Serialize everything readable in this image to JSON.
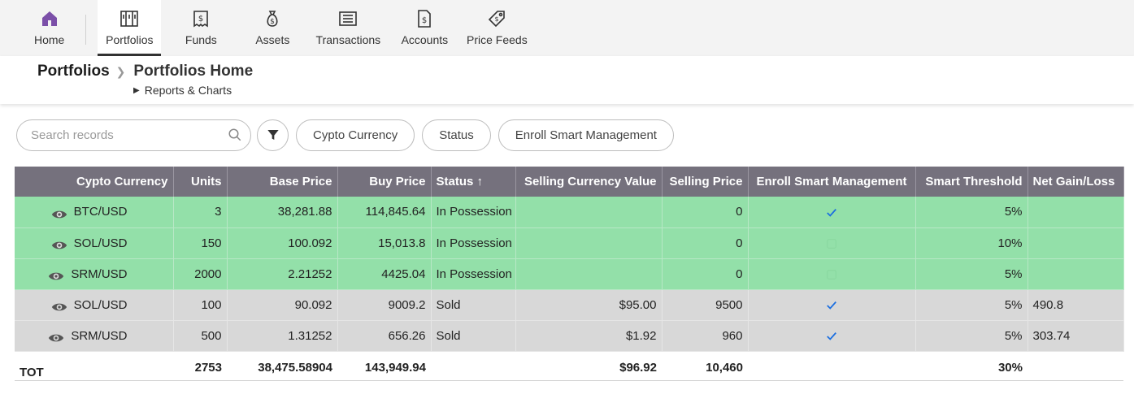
{
  "nav": {
    "items": [
      {
        "label": "Home",
        "icon": "home-icon"
      },
      {
        "label": "Portfolios",
        "icon": "portfolio-icon"
      },
      {
        "label": "Funds",
        "icon": "funds-icon"
      },
      {
        "label": "Assets",
        "icon": "money-bag-icon"
      },
      {
        "label": "Transactions",
        "icon": "transactions-icon"
      },
      {
        "label": "Accounts",
        "icon": "accounts-icon"
      },
      {
        "label": "Price Feeds",
        "icon": "price-tag-icon"
      }
    ],
    "active": "Portfolios",
    "home_color": "#7b4fa8"
  },
  "header": {
    "breadcrumb_root": "Portfolios",
    "breadcrumb_current": "Portfolios Home",
    "sublink": "Reports & Charts"
  },
  "toolbar": {
    "search_placeholder": "Search records",
    "pills": [
      "Cypto Currency",
      "Status",
      "Enroll Smart Management"
    ]
  },
  "table": {
    "headers": {
      "currency": "Cypto Currency",
      "units": "Units",
      "base_price": "Base Price",
      "buy_price": "Buy Price",
      "status": "Status",
      "selling_currency_value": "Selling Currency Value",
      "selling_price": "Selling Price",
      "enroll": "Enroll Smart Management",
      "threshold": "Smart Threshold",
      "net_gain": "Net Gain/Loss"
    },
    "rows": [
      {
        "currency": "BTC/USD",
        "units": "3",
        "base_price": "38,281.88",
        "buy_price": "114,845.64",
        "status": "In Possession",
        "selling_currency_value": "",
        "selling_price": "0",
        "enrolled": "yes",
        "threshold": "5%",
        "net_gain": "",
        "kind": "green"
      },
      {
        "currency": "SOL/USD",
        "units": "150",
        "base_price": "100.092",
        "buy_price": "15,013.8",
        "status": "In Possession",
        "selling_currency_value": "",
        "selling_price": "0",
        "enrolled": "no",
        "threshold": "10%",
        "net_gain": "",
        "kind": "green"
      },
      {
        "currency": "SRM/USD",
        "units": "2000",
        "base_price": "2.21252",
        "buy_price": "4425.04",
        "status": "In Possession",
        "selling_currency_value": "",
        "selling_price": "0",
        "enrolled": "no",
        "threshold": "5%",
        "net_gain": "",
        "kind": "green"
      },
      {
        "currency": "SOL/USD",
        "units": "100",
        "base_price": "90.092",
        "buy_price": "9009.2",
        "status": "Sold",
        "selling_currency_value": "$95.00",
        "selling_price": "9500",
        "enrolled": "yes",
        "threshold": "5%",
        "net_gain": "490.8",
        "kind": "gray"
      },
      {
        "currency": "SRM/USD",
        "units": "500",
        "base_price": "1.31252",
        "buy_price": "656.26",
        "status": "Sold",
        "selling_currency_value": "$1.92",
        "selling_price": "960",
        "enrolled": "yes",
        "threshold": "5%",
        "net_gain": "303.74",
        "kind": "gray"
      }
    ],
    "totals": {
      "label": "TOT",
      "units": "2753",
      "base_price": "38,475.58904",
      "buy_price": "143,949.94",
      "selling_currency_value": "$96.92",
      "selling_price": "10,460",
      "threshold": "30%"
    },
    "colors": {
      "header_bg": "#75717d",
      "possession_row": "#93e0a9",
      "sold_row": "#d8d8d8",
      "check": "#1a6ee0"
    }
  }
}
